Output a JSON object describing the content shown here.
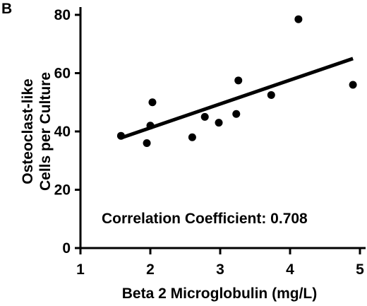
{
  "panel_label": "B",
  "chart_data": {
    "type": "scatter",
    "title": "",
    "xlabel": "Beta 2 Microglobulin (mg/L)",
    "ylabel_lines": [
      "Osteoclast-like",
      "Cells per Culture"
    ],
    "xlim": [
      1,
      5
    ],
    "ylim": [
      0,
      85
    ],
    "xticks": [
      1,
      2,
      3,
      4,
      5
    ],
    "yticks": [
      0,
      20,
      40,
      60,
      80
    ],
    "grid": false,
    "points": [
      {
        "x": 1.58,
        "y": 38.5
      },
      {
        "x": 1.95,
        "y": 36.0
      },
      {
        "x": 2.0,
        "y": 42.0
      },
      {
        "x": 2.03,
        "y": 50.0
      },
      {
        "x": 2.6,
        "y": 38.0
      },
      {
        "x": 2.78,
        "y": 45.0
      },
      {
        "x": 2.98,
        "y": 43.0
      },
      {
        "x": 3.23,
        "y": 46.0
      },
      {
        "x": 3.26,
        "y": 57.5
      },
      {
        "x": 3.73,
        "y": 52.5
      },
      {
        "x": 4.12,
        "y": 78.5
      },
      {
        "x": 4.9,
        "y": 56.0
      }
    ],
    "trend_line": {
      "x": [
        1.58,
        4.9
      ],
      "y": [
        37.8,
        65.0
      ]
    },
    "annotation": "Correlation Coefficient: 0.708"
  }
}
